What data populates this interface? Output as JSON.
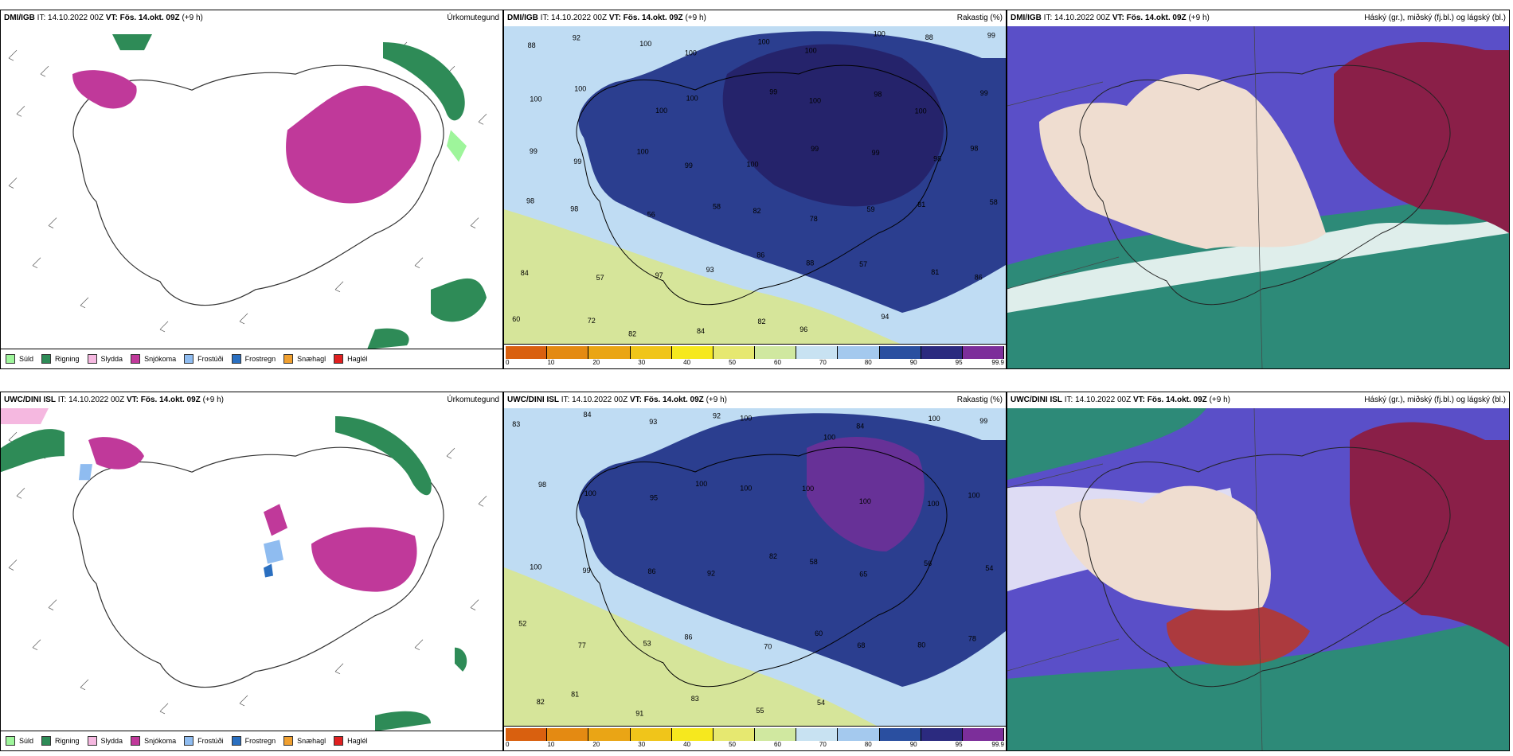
{
  "rows": [
    {
      "model_label": "DMI/IGB",
      "panels": [
        {
          "it_prefix": "IT:",
          "it_value": "14.10.2022 00Z",
          "vt_prefix": "VT:",
          "vt_value": "Fös. 14.okt. 09Z",
          "lead": "(+9 h)",
          "right_label": "Úrkomutegund",
          "type": "precip_type"
        },
        {
          "it_prefix": "IT:",
          "it_value": "14.10.2022 00Z",
          "vt_prefix": "VT:",
          "vt_value": "Fös. 14.okt. 09Z",
          "lead": "(+9 h)",
          "right_label": "Rakastig (%)",
          "type": "humidity",
          "values": [
            "88",
            "92",
            "100",
            "100",
            "100",
            "100",
            "100",
            "88",
            "99",
            "100",
            "100",
            "100",
            "100",
            "99",
            "100",
            "98",
            "100",
            "99",
            "99",
            "99",
            "100",
            "99",
            "100",
            "99",
            "99",
            "98",
            "98",
            "98",
            "98",
            "56",
            "58",
            "82",
            "78",
            "59",
            "81",
            "58",
            "84",
            "57",
            "97",
            "93",
            "86",
            "88",
            "57",
            "81",
            "86",
            "60",
            "72",
            "82",
            "84",
            "82",
            "96",
            "94"
          ]
        },
        {
          "it_prefix": "IT:",
          "it_value": "14.10.2022 00Z",
          "vt_prefix": "VT:",
          "vt_value": "Fös. 14.okt. 09Z",
          "lead": "(+9 h)",
          "right_label": "Háský (gr.), miðský (fj.bl.) og lágský (bl.)",
          "type": "clouds"
        }
      ]
    },
    {
      "model_label": "UWC/DINI ISL",
      "panels": [
        {
          "it_prefix": "IT:",
          "it_value": "14.10.2022 00Z",
          "vt_prefix": "VT:",
          "vt_value": "Fös. 14.okt. 09Z",
          "lead": "(+9 h)",
          "right_label": "Úrkomutegund",
          "type": "precip_type"
        },
        {
          "it_prefix": "IT:",
          "it_value": "14.10.2022 00Z",
          "vt_prefix": "VT:",
          "vt_value": "Fös. 14.okt. 09Z",
          "lead": "(+9 h)",
          "right_label": "Rakastig (%)",
          "type": "humidity",
          "values": [
            "83",
            "84",
            "93",
            "92",
            "100",
            "100",
            "84",
            "100",
            "99",
            "98",
            "100",
            "95",
            "100",
            "100",
            "100",
            "100",
            "100",
            "100",
            "100",
            "99",
            "86",
            "92",
            "82",
            "58",
            "65",
            "56",
            "54",
            "52",
            "77",
            "53",
            "86",
            "70",
            "60",
            "68",
            "80",
            "78",
            "82",
            "81",
            "91",
            "83",
            "55",
            "54"
          ]
        },
        {
          "it_prefix": "IT:",
          "it_value": "14.10.2022 00Z",
          "vt_prefix": "VT:",
          "vt_value": "Fös. 14.okt. 09Z",
          "lead": "(+9 h)",
          "right_label": "Háský (gr.), miðský (fj.bl.) og lágský (bl.)",
          "type": "clouds"
        }
      ]
    }
  ],
  "precip_legend": [
    {
      "label": "Súld",
      "color": "#9ef59b"
    },
    {
      "label": "Rigning",
      "color": "#2e8b57"
    },
    {
      "label": "Slydda",
      "color": "#f5b8e0"
    },
    {
      "label": "Snjókoma",
      "color": "#c0399a"
    },
    {
      "label": "Frostúði",
      "color": "#8fbcf0"
    },
    {
      "label": "Frostregn",
      "color": "#2a6fc0"
    },
    {
      "label": "Snæhagl",
      "color": "#f0a030"
    },
    {
      "label": "Haglél",
      "color": "#e02020"
    }
  ],
  "humidity_scale": {
    "ticks": [
      "0",
      "10",
      "20",
      "30",
      "40",
      "50",
      "60",
      "70",
      "80",
      "90",
      "95",
      "99.9"
    ],
    "colors": [
      "#d9600f",
      "#e48a12",
      "#eaa515",
      "#f0c51a",
      "#f6e81e",
      "#e6e870",
      "#d0e8a0",
      "#c8e2f2",
      "#a4c9ee",
      "#2a4fa0",
      "#2b2a7f",
      "#7c2e9a"
    ]
  },
  "map_colors": {
    "humidity_low": "#d6e59a",
    "humidity_mid": "#bfdcf3",
    "humidity_high": "#2b3e8f",
    "humidity_top": "#25236b",
    "cloud_land": "#efddd0",
    "cloud_mid": "#5a4fc8",
    "cloud_high": "#8a1f48",
    "cloud_low": "#2d8a78"
  }
}
